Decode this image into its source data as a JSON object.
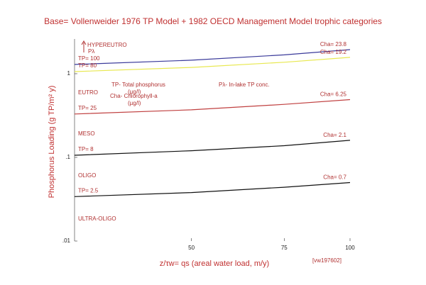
{
  "chart_data": {
    "type": "line",
    "title": "Base= Vollenweider 1976 TP Model + 1982 OECD Management Model trophic categories",
    "x_label": "z/τw= qs (areal water load, m/y)",
    "y_label": "Phosphorus Loading (g TP/m² y)",
    "x_log": true,
    "y_log": true,
    "xlim": [
      30,
      100
    ],
    "ylim": [
      0.01,
      2.6
    ],
    "xticks": [
      50,
      75,
      100
    ],
    "yticks": [
      {
        "value": 0.01,
        "label": ".01"
      },
      {
        "value": 0.1,
        "label": ".1"
      },
      1
    ],
    "x": [
      30,
      50,
      75,
      100
    ],
    "series": [
      {
        "name": "TP= 100",
        "label": "Cha= 23.8",
        "color": "#3a3a9a",
        "values": [
          1.29,
          1.45,
          1.68,
          1.94
        ]
      },
      {
        "name": "TP= 80",
        "label": "Cha= 19.2",
        "color": "#e8e850",
        "values": [
          1.06,
          1.19,
          1.37,
          1.57
        ]
      },
      {
        "name": "TP= 25",
        "label": "Cha= 6.25",
        "color": "#c04040",
        "values": [
          0.33,
          0.37,
          0.43,
          0.49
        ]
      },
      {
        "name": "TP= 8",
        "label": "Cha= 2.1",
        "color": "#111111",
        "values": [
          0.106,
          0.12,
          0.138,
          0.16
        ]
      },
      {
        "name": "TP= 2.5",
        "label": "Cha= 0.7",
        "color": "#111111",
        "values": [
          0.034,
          0.038,
          0.044,
          0.05
        ]
      }
    ],
    "categories_trophic": [
      "HYPEREUTRO",
      "EUTRO",
      "MESO",
      "OLIGO",
      "ULTRA-OLIGO"
    ],
    "annotations": [
      "TP- Total phosphorus",
      "(µg/l)",
      "Cha- Chlorophyll-a",
      "(µg/l)",
      "Pλ- In-lake TP conc.",
      "Pλ",
      "[vw197602]"
    ]
  }
}
